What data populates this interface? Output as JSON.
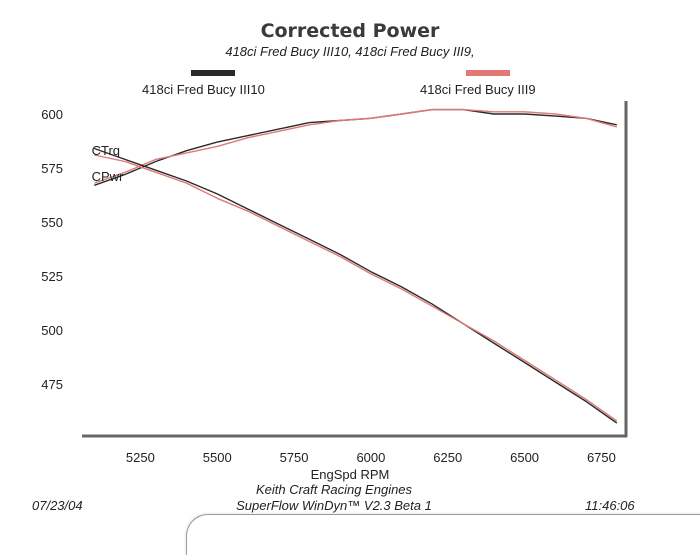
{
  "colors": {
    "series_a": "#2a2a2a",
    "series_b": "#e07878",
    "axis": "#666666"
  },
  "chart_data": {
    "type": "line",
    "title": "Corrected Power",
    "subtitle": "418ci Fred Bucy III10, 418ci Fred Bucy III9,",
    "xlabel": "EngSpd  RPM",
    "ylabel": "",
    "xlim": [
      5060,
      6830
    ],
    "ylim": [
      451,
      606
    ],
    "xticks": [
      5250,
      5500,
      5750,
      6000,
      6250,
      6500,
      6750
    ],
    "yticks": [
      475,
      500,
      525,
      550,
      575,
      600
    ],
    "grid": false,
    "legend": "top",
    "legend_entries": [
      "418ci Fred Bucy III10",
      "418ci Fred Bucy III9"
    ],
    "annotations": [
      {
        "text": "CTrq",
        "x": 5075,
        "y": 581
      },
      {
        "text": "CPwr",
        "x": 5075,
        "y": 569
      }
    ],
    "series": [
      {
        "name": "418ci Fred Bucy III10",
        "curve": "CPwr",
        "x": [
          5100,
          5200,
          5300,
          5400,
          5500,
          5600,
          5700,
          5800,
          5900,
          6000,
          6100,
          6200,
          6300,
          6400,
          6500,
          6600,
          6700,
          6800
        ],
        "values": [
          567,
          572,
          578,
          583,
          587,
          590,
          593,
          596,
          597,
          598,
          600,
          602,
          602,
          600,
          600,
          599,
          598,
          595
        ]
      },
      {
        "name": "418ci Fred Bucy III9",
        "curve": "CPwr",
        "x": [
          5100,
          5200,
          5300,
          5400,
          5500,
          5600,
          5700,
          5800,
          5900,
          6000,
          6100,
          6200,
          6300,
          6400,
          6500,
          6600,
          6700,
          6800
        ],
        "values": [
          568,
          573,
          579,
          582,
          585,
          589,
          592,
          595,
          597,
          598,
          600,
          602,
          602,
          601,
          601,
          600,
          598,
          594
        ]
      },
      {
        "name": "418ci Fred Bucy III10",
        "curve": "CTrq",
        "x": [
          5100,
          5200,
          5300,
          5400,
          5500,
          5600,
          5700,
          5800,
          5900,
          6000,
          6100,
          6200,
          6300,
          6400,
          6500,
          6600,
          6700,
          6800
        ],
        "values": [
          584,
          579,
          574,
          569,
          563,
          556,
          549,
          542,
          535,
          527,
          520,
          512,
          503,
          494,
          485,
          476,
          467,
          457
        ]
      },
      {
        "name": "418ci Fred Bucy III9",
        "curve": "CTrq",
        "x": [
          5100,
          5200,
          5300,
          5400,
          5500,
          5600,
          5700,
          5800,
          5900,
          6000,
          6100,
          6200,
          6300,
          6400,
          6500,
          6600,
          6700,
          6800
        ],
        "values": [
          581,
          578,
          573,
          568,
          561,
          555,
          548,
          541,
          534,
          526,
          519,
          511,
          503,
          495,
          486,
          477,
          468,
          458
        ]
      }
    ]
  },
  "footer": {
    "date": "07/23/04",
    "company": "Keith Craft Racing Engines",
    "software": "SuperFlow WinDyn™ V2.3 Beta 1",
    "time": "11:46:06"
  }
}
